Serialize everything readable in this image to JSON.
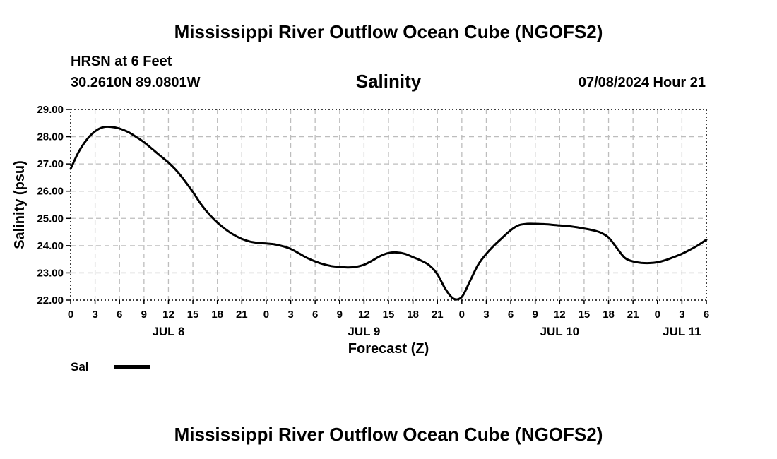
{
  "header": {
    "title": "Mississippi River Outflow Ocean Cube (NGOFS2)",
    "station": "HRSN at 6 Feet",
    "coords": "30.2610N  89.0801W",
    "parameter": "Salinity",
    "datetime": "07/08/2024 Hour 21"
  },
  "footer": {
    "title": "Mississippi River Outflow Ocean Cube (NGOFS2)"
  },
  "legend": {
    "label": "Sal",
    "color": "#000000"
  },
  "chart_data": {
    "type": "line",
    "title": "Salinity",
    "xlabel": "Forecast (Z)",
    "ylabel": "Salinity (psu)",
    "xlim": [
      0,
      78
    ],
    "ylim": [
      22.0,
      29.0
    ],
    "grid": true,
    "x_tick_values": [
      0,
      3,
      6,
      9,
      12,
      15,
      18,
      21,
      24,
      27,
      30,
      33,
      36,
      39,
      42,
      45,
      48,
      51,
      54,
      57,
      60,
      63,
      66,
      69,
      72,
      75,
      78
    ],
    "x_tick_labels": [
      "0",
      "3",
      "6",
      "9",
      "12",
      "15",
      "18",
      "21",
      "0",
      "3",
      "6",
      "9",
      "12",
      "15",
      "18",
      "21",
      "0",
      "3",
      "6",
      "9",
      "12",
      "15",
      "18",
      "21",
      "0",
      "3",
      "6"
    ],
    "date_labels": [
      {
        "label": "JUL 8",
        "x": 12
      },
      {
        "label": "JUL 9",
        "x": 36
      },
      {
        "label": "JUL 10",
        "x": 60
      },
      {
        "label": "JUL 11",
        "x": 75
      }
    ],
    "y_tick_values": [
      22,
      23,
      24,
      25,
      26,
      27,
      28,
      29
    ],
    "y_tick_labels": [
      "22.00",
      "23.00",
      "24.00",
      "25.00",
      "26.00",
      "27.00",
      "28.00",
      "29.00"
    ],
    "series": [
      {
        "name": "Sal",
        "x": [
          0,
          1,
          2,
          3,
          4,
          5,
          6,
          7,
          8,
          9,
          10,
          11,
          12,
          13,
          14,
          15,
          16,
          17,
          18,
          19,
          20,
          21,
          22,
          23,
          24,
          25,
          26,
          27,
          28,
          29,
          30,
          31,
          32,
          33,
          34,
          35,
          36,
          37,
          38,
          39,
          40,
          41,
          42,
          43,
          44,
          45,
          46,
          47,
          48,
          49,
          50,
          51,
          52,
          53,
          54,
          55,
          56,
          57,
          58,
          59,
          60,
          61,
          62,
          63,
          64,
          65,
          66,
          67,
          68,
          69,
          70,
          71,
          72,
          73,
          74,
          75,
          76,
          77,
          78
        ],
        "values": [
          26.82,
          27.45,
          27.9,
          28.2,
          28.35,
          28.36,
          28.3,
          28.18,
          28.0,
          27.8,
          27.55,
          27.3,
          27.05,
          26.75,
          26.38,
          25.97,
          25.52,
          25.15,
          24.85,
          24.6,
          24.4,
          24.25,
          24.15,
          24.1,
          24.08,
          24.05,
          23.98,
          23.88,
          23.72,
          23.55,
          23.42,
          23.32,
          23.25,
          23.22,
          23.2,
          23.22,
          23.3,
          23.45,
          23.62,
          23.73,
          23.75,
          23.7,
          23.58,
          23.45,
          23.28,
          22.95,
          22.4,
          22.05,
          22.12,
          22.7,
          23.3,
          23.7,
          24.02,
          24.3,
          24.57,
          24.75,
          24.8,
          24.8,
          24.79,
          24.77,
          24.74,
          24.72,
          24.68,
          24.63,
          24.57,
          24.48,
          24.3,
          23.92,
          23.55,
          23.42,
          23.37,
          23.36,
          23.39,
          23.47,
          23.58,
          23.7,
          23.85,
          24.02,
          24.22
        ]
      }
    ]
  }
}
